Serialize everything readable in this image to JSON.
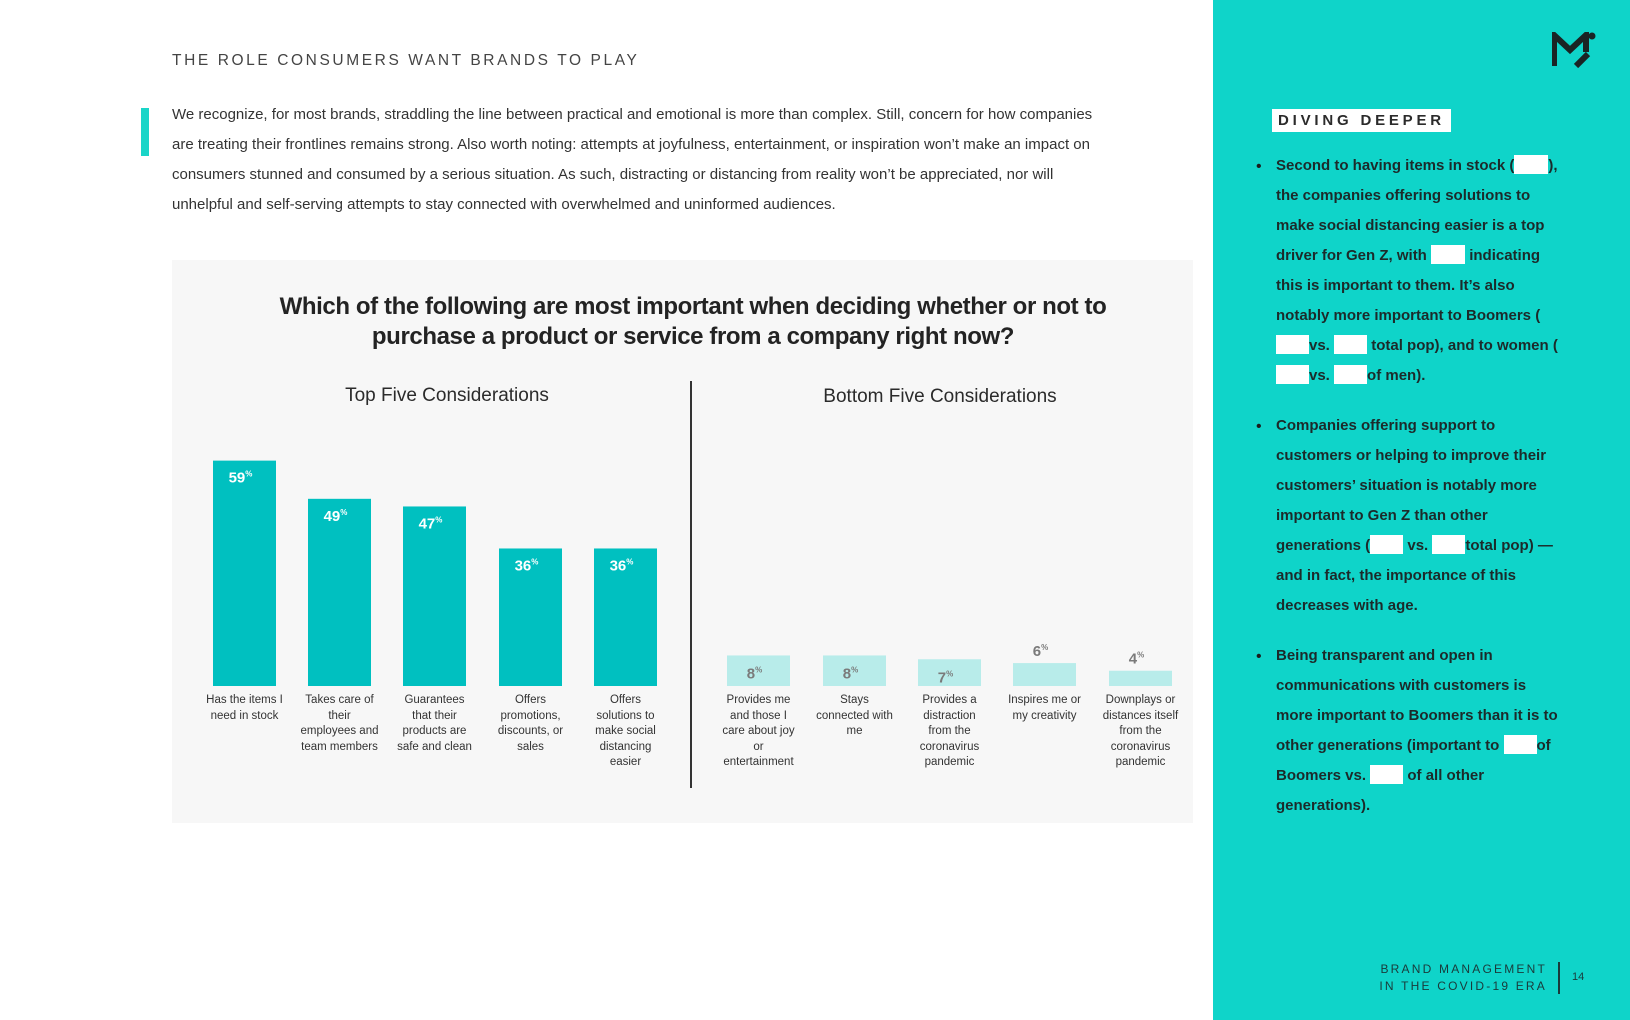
{
  "header": {
    "section_title": "THE ROLE CONSUMERS WANT BRANDS TO PLAY",
    "intro": "We recognize, for most brands, straddling the line between practical and emotional is more than complex. Still, concern for how companies are treating their frontlines remains strong. Also worth noting: attempts at joyfulness, entertainment, or inspiration won’t make an impact on consumers stunned and consumed by a serious situation. As such, distracting or distancing from reality won’t be appreciated, nor will unhelpful and self-serving attempts to stay connected with overwhelmed and uninformed audiences."
  },
  "chart_data": {
    "type": "bar",
    "title": "Which of the following are most important when deciding whether or not to purchase a product or service from a company right now?",
    "unit_suffix": "%",
    "colors": {
      "top": "#00c0c0",
      "bottom": "#b8ecea",
      "top_label": "#ffffff",
      "bottom_label": "#7a7a7a"
    },
    "panels": [
      {
        "title": "Top Five Considerations",
        "categories": [
          "Has the items I need in stock",
          "Takes care of their employees and team members",
          "Guarantees that their products are safe and clean",
          "Offers promotions, discounts, or sales",
          "Offers solutions to make social distancing easier"
        ],
        "values": [
          59,
          49,
          47,
          36,
          36
        ]
      },
      {
        "title": "Bottom Five Considerations",
        "categories": [
          "Provides me and those I care about joy or entertainment",
          "Stays connected with me",
          "Provides a distraction from the coronavirus pandemic",
          "Inspires me or my creativity",
          "Downplays or distances itself from the coronavirus pandemic"
        ],
        "values": [
          8,
          8,
          7,
          6,
          4
        ]
      }
    ]
  },
  "sidebar": {
    "heading": "DIVING DEEPER",
    "bullets": [
      {
        "parts": [
          "Second to having items in stock (",
          "",
          "), the companies offering solutions to make social distancing easier is a top driver for Gen Z, with ",
          "",
          " indicating this is important to them. It’s also notably more important to Boomers (",
          "",
          "vs. ",
          "",
          " total pop), and to women (",
          "",
          "vs. ",
          "",
          "of men)."
        ]
      },
      {
        "parts": [
          "Companies offering support to customers or helping to improve their customers’ situation is notably more important to Gen Z than other generations (",
          "",
          " vs. ",
          "",
          "total pop) — and in fact, the importance of this decreases with age."
        ]
      },
      {
        "parts": [
          "Being transparent and open in communications with customers is more important to Boomers than it is to other generations (important to ",
          "",
          "of Boomers vs. ",
          "",
          " of all other generations)."
        ]
      }
    ]
  },
  "footer": {
    "line1": "BRAND MANAGEMENT",
    "line2": "IN THE COVID-19 ERA",
    "page_number": "14"
  },
  "brand": {
    "accent": "#0fd4c9",
    "logo": "m-logo-icon"
  }
}
